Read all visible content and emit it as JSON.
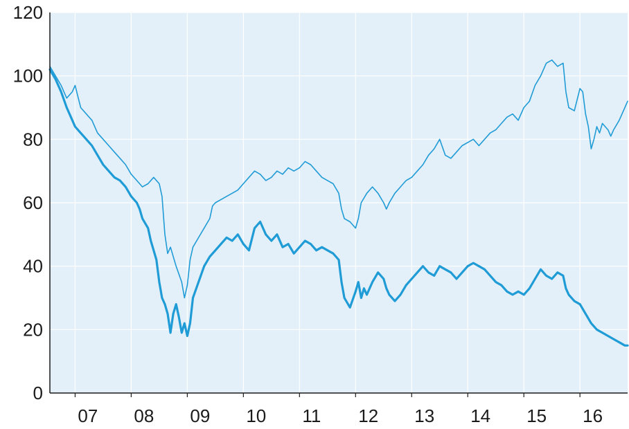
{
  "chart_data": {
    "type": "line",
    "x_start": 2006.55,
    "x_end": 2016.85,
    "ylim": [
      0,
      120
    ],
    "yticks": [
      0,
      20,
      40,
      60,
      80,
      100,
      120
    ],
    "y_tick_labels": [
      "0",
      "20",
      "40",
      "60",
      "80",
      "100",
      "120"
    ],
    "x_tick_labels": [
      {
        "label": "07",
        "x": 2007.0
      },
      {
        "label": "08",
        "x": 2008.0
      },
      {
        "label": "09",
        "x": 2009.0
      },
      {
        "label": "10",
        "x": 2010.0
      },
      {
        "label": "11",
        "x": 2011.0
      },
      {
        "label": "12",
        "x": 2012.0
      },
      {
        "label": "13",
        "x": 2013.0
      },
      {
        "label": "14",
        "x": 2014.0
      },
      {
        "label": "15",
        "x": 2015.0
      },
      {
        "label": "16",
        "x": 2016.0
      }
    ],
    "x_separators": [
      2007.0,
      2008.0,
      2009.0,
      2010.0,
      2011.0,
      2012.0,
      2013.0,
      2014.0,
      2015.0,
      2016.0
    ],
    "grid": true,
    "colors": {
      "plot_bg": "#e3f0f9",
      "grid": "#ffffff",
      "line": "#1f9bd6",
      "axis": "#1a1a1a"
    },
    "series": [
      {
        "style": "thin",
        "points": [
          [
            2006.55,
            103
          ],
          [
            2006.65,
            100
          ],
          [
            2006.75,
            97
          ],
          [
            2006.85,
            93
          ],
          [
            2006.95,
            95
          ],
          [
            2007.0,
            97
          ],
          [
            2007.1,
            90
          ],
          [
            2007.2,
            88
          ],
          [
            2007.3,
            86
          ],
          [
            2007.4,
            82
          ],
          [
            2007.5,
            80
          ],
          [
            2007.6,
            78
          ],
          [
            2007.7,
            76
          ],
          [
            2007.8,
            74
          ],
          [
            2007.9,
            72
          ],
          [
            2008.0,
            69
          ],
          [
            2008.1,
            67
          ],
          [
            2008.2,
            65
          ],
          [
            2008.3,
            66
          ],
          [
            2008.4,
            68
          ],
          [
            2008.5,
            66
          ],
          [
            2008.55,
            62
          ],
          [
            2008.6,
            50
          ],
          [
            2008.65,
            44
          ],
          [
            2008.7,
            46
          ],
          [
            2008.8,
            40
          ],
          [
            2008.9,
            35
          ],
          [
            2008.95,
            30
          ],
          [
            2009.0,
            34
          ],
          [
            2009.05,
            42
          ],
          [
            2009.1,
            46
          ],
          [
            2009.2,
            49
          ],
          [
            2009.3,
            52
          ],
          [
            2009.4,
            55
          ],
          [
            2009.45,
            59
          ],
          [
            2009.5,
            60
          ],
          [
            2009.6,
            61
          ],
          [
            2009.7,
            62
          ],
          [
            2009.8,
            63
          ],
          [
            2009.9,
            64
          ],
          [
            2010.0,
            66
          ],
          [
            2010.1,
            68
          ],
          [
            2010.2,
            70
          ],
          [
            2010.3,
            69
          ],
          [
            2010.4,
            67
          ],
          [
            2010.5,
            68
          ],
          [
            2010.6,
            70
          ],
          [
            2010.7,
            69
          ],
          [
            2010.8,
            71
          ],
          [
            2010.9,
            70
          ],
          [
            2011.0,
            71
          ],
          [
            2011.1,
            73
          ],
          [
            2011.2,
            72
          ],
          [
            2011.3,
            70
          ],
          [
            2011.4,
            68
          ],
          [
            2011.5,
            67
          ],
          [
            2011.6,
            66
          ],
          [
            2011.7,
            63
          ],
          [
            2011.75,
            58
          ],
          [
            2011.8,
            55
          ],
          [
            2011.9,
            54
          ],
          [
            2012.0,
            52
          ],
          [
            2012.05,
            55
          ],
          [
            2012.1,
            60
          ],
          [
            2012.2,
            63
          ],
          [
            2012.3,
            65
          ],
          [
            2012.4,
            63
          ],
          [
            2012.5,
            60
          ],
          [
            2012.55,
            58
          ],
          [
            2012.6,
            60
          ],
          [
            2012.7,
            63
          ],
          [
            2012.8,
            65
          ],
          [
            2012.9,
            67
          ],
          [
            2013.0,
            68
          ],
          [
            2013.1,
            70
          ],
          [
            2013.2,
            72
          ],
          [
            2013.3,
            75
          ],
          [
            2013.4,
            77
          ],
          [
            2013.5,
            80
          ],
          [
            2013.6,
            75
          ],
          [
            2013.7,
            74
          ],
          [
            2013.8,
            76
          ],
          [
            2013.9,
            78
          ],
          [
            2014.0,
            79
          ],
          [
            2014.1,
            80
          ],
          [
            2014.2,
            78
          ],
          [
            2014.3,
            80
          ],
          [
            2014.4,
            82
          ],
          [
            2014.5,
            83
          ],
          [
            2014.6,
            85
          ],
          [
            2014.7,
            87
          ],
          [
            2014.8,
            88
          ],
          [
            2014.9,
            86
          ],
          [
            2015.0,
            90
          ],
          [
            2015.1,
            92
          ],
          [
            2015.2,
            97
          ],
          [
            2015.3,
            100
          ],
          [
            2015.4,
            104
          ],
          [
            2015.5,
            105
          ],
          [
            2015.6,
            103
          ],
          [
            2015.7,
            104
          ],
          [
            2015.75,
            95
          ],
          [
            2015.8,
            90
          ],
          [
            2015.9,
            89
          ],
          [
            2016.0,
            96
          ],
          [
            2016.05,
            95
          ],
          [
            2016.1,
            88
          ],
          [
            2016.15,
            84
          ],
          [
            2016.2,
            77
          ],
          [
            2016.25,
            80
          ],
          [
            2016.3,
            84
          ],
          [
            2016.35,
            82
          ],
          [
            2016.4,
            85
          ],
          [
            2016.5,
            83
          ],
          [
            2016.55,
            81
          ],
          [
            2016.6,
            83
          ],
          [
            2016.7,
            86
          ],
          [
            2016.8,
            90
          ],
          [
            2016.85,
            92
          ]
        ]
      },
      {
        "style": "thick",
        "points": [
          [
            2006.55,
            102
          ],
          [
            2006.65,
            99
          ],
          [
            2006.75,
            95
          ],
          [
            2006.85,
            90
          ],
          [
            2006.95,
            86
          ],
          [
            2007.0,
            84
          ],
          [
            2007.1,
            82
          ],
          [
            2007.2,
            80
          ],
          [
            2007.3,
            78
          ],
          [
            2007.4,
            75
          ],
          [
            2007.5,
            72
          ],
          [
            2007.6,
            70
          ],
          [
            2007.7,
            68
          ],
          [
            2007.8,
            67
          ],
          [
            2007.9,
            65
          ],
          [
            2008.0,
            62
          ],
          [
            2008.1,
            60
          ],
          [
            2008.15,
            58
          ],
          [
            2008.2,
            55
          ],
          [
            2008.3,
            52
          ],
          [
            2008.35,
            48
          ],
          [
            2008.4,
            45
          ],
          [
            2008.45,
            42
          ],
          [
            2008.5,
            35
          ],
          [
            2008.55,
            30
          ],
          [
            2008.6,
            28
          ],
          [
            2008.65,
            25
          ],
          [
            2008.7,
            19
          ],
          [
            2008.75,
            25
          ],
          [
            2008.8,
            28
          ],
          [
            2008.85,
            24
          ],
          [
            2008.9,
            19
          ],
          [
            2008.95,
            22
          ],
          [
            2009.0,
            18
          ],
          [
            2009.05,
            22
          ],
          [
            2009.1,
            30
          ],
          [
            2009.2,
            35
          ],
          [
            2009.3,
            40
          ],
          [
            2009.4,
            43
          ],
          [
            2009.5,
            45
          ],
          [
            2009.6,
            47
          ],
          [
            2009.7,
            49
          ],
          [
            2009.8,
            48
          ],
          [
            2009.9,
            50
          ],
          [
            2010.0,
            47
          ],
          [
            2010.1,
            45
          ],
          [
            2010.2,
            52
          ],
          [
            2010.3,
            54
          ],
          [
            2010.4,
            50
          ],
          [
            2010.5,
            48
          ],
          [
            2010.6,
            50
          ],
          [
            2010.7,
            46
          ],
          [
            2010.8,
            47
          ],
          [
            2010.9,
            44
          ],
          [
            2011.0,
            46
          ],
          [
            2011.1,
            48
          ],
          [
            2011.2,
            47
          ],
          [
            2011.3,
            45
          ],
          [
            2011.4,
            46
          ],
          [
            2011.5,
            45
          ],
          [
            2011.6,
            44
          ],
          [
            2011.7,
            42
          ],
          [
            2011.75,
            35
          ],
          [
            2011.8,
            30
          ],
          [
            2011.9,
            27
          ],
          [
            2012.0,
            32
          ],
          [
            2012.05,
            35
          ],
          [
            2012.1,
            30
          ],
          [
            2012.15,
            33
          ],
          [
            2012.2,
            31
          ],
          [
            2012.3,
            35
          ],
          [
            2012.4,
            38
          ],
          [
            2012.5,
            36
          ],
          [
            2012.55,
            33
          ],
          [
            2012.6,
            31
          ],
          [
            2012.7,
            29
          ],
          [
            2012.8,
            31
          ],
          [
            2012.9,
            34
          ],
          [
            2013.0,
            36
          ],
          [
            2013.1,
            38
          ],
          [
            2013.2,
            40
          ],
          [
            2013.3,
            38
          ],
          [
            2013.4,
            37
          ],
          [
            2013.5,
            40
          ],
          [
            2013.6,
            39
          ],
          [
            2013.7,
            38
          ],
          [
            2013.8,
            36
          ],
          [
            2013.9,
            38
          ],
          [
            2014.0,
            40
          ],
          [
            2014.1,
            41
          ],
          [
            2014.2,
            40
          ],
          [
            2014.3,
            39
          ],
          [
            2014.4,
            37
          ],
          [
            2014.5,
            35
          ],
          [
            2014.6,
            34
          ],
          [
            2014.7,
            32
          ],
          [
            2014.8,
            31
          ],
          [
            2014.9,
            32
          ],
          [
            2015.0,
            31
          ],
          [
            2015.1,
            33
          ],
          [
            2015.2,
            36
          ],
          [
            2015.3,
            39
          ],
          [
            2015.4,
            37
          ],
          [
            2015.5,
            36
          ],
          [
            2015.6,
            38
          ],
          [
            2015.7,
            37
          ],
          [
            2015.75,
            33
          ],
          [
            2015.8,
            31
          ],
          [
            2015.9,
            29
          ],
          [
            2016.0,
            28
          ],
          [
            2016.1,
            25
          ],
          [
            2016.2,
            22
          ],
          [
            2016.3,
            20
          ],
          [
            2016.4,
            19
          ],
          [
            2016.5,
            18
          ],
          [
            2016.6,
            17
          ],
          [
            2016.7,
            16
          ],
          [
            2016.8,
            15
          ],
          [
            2016.85,
            15
          ]
        ]
      }
    ]
  }
}
